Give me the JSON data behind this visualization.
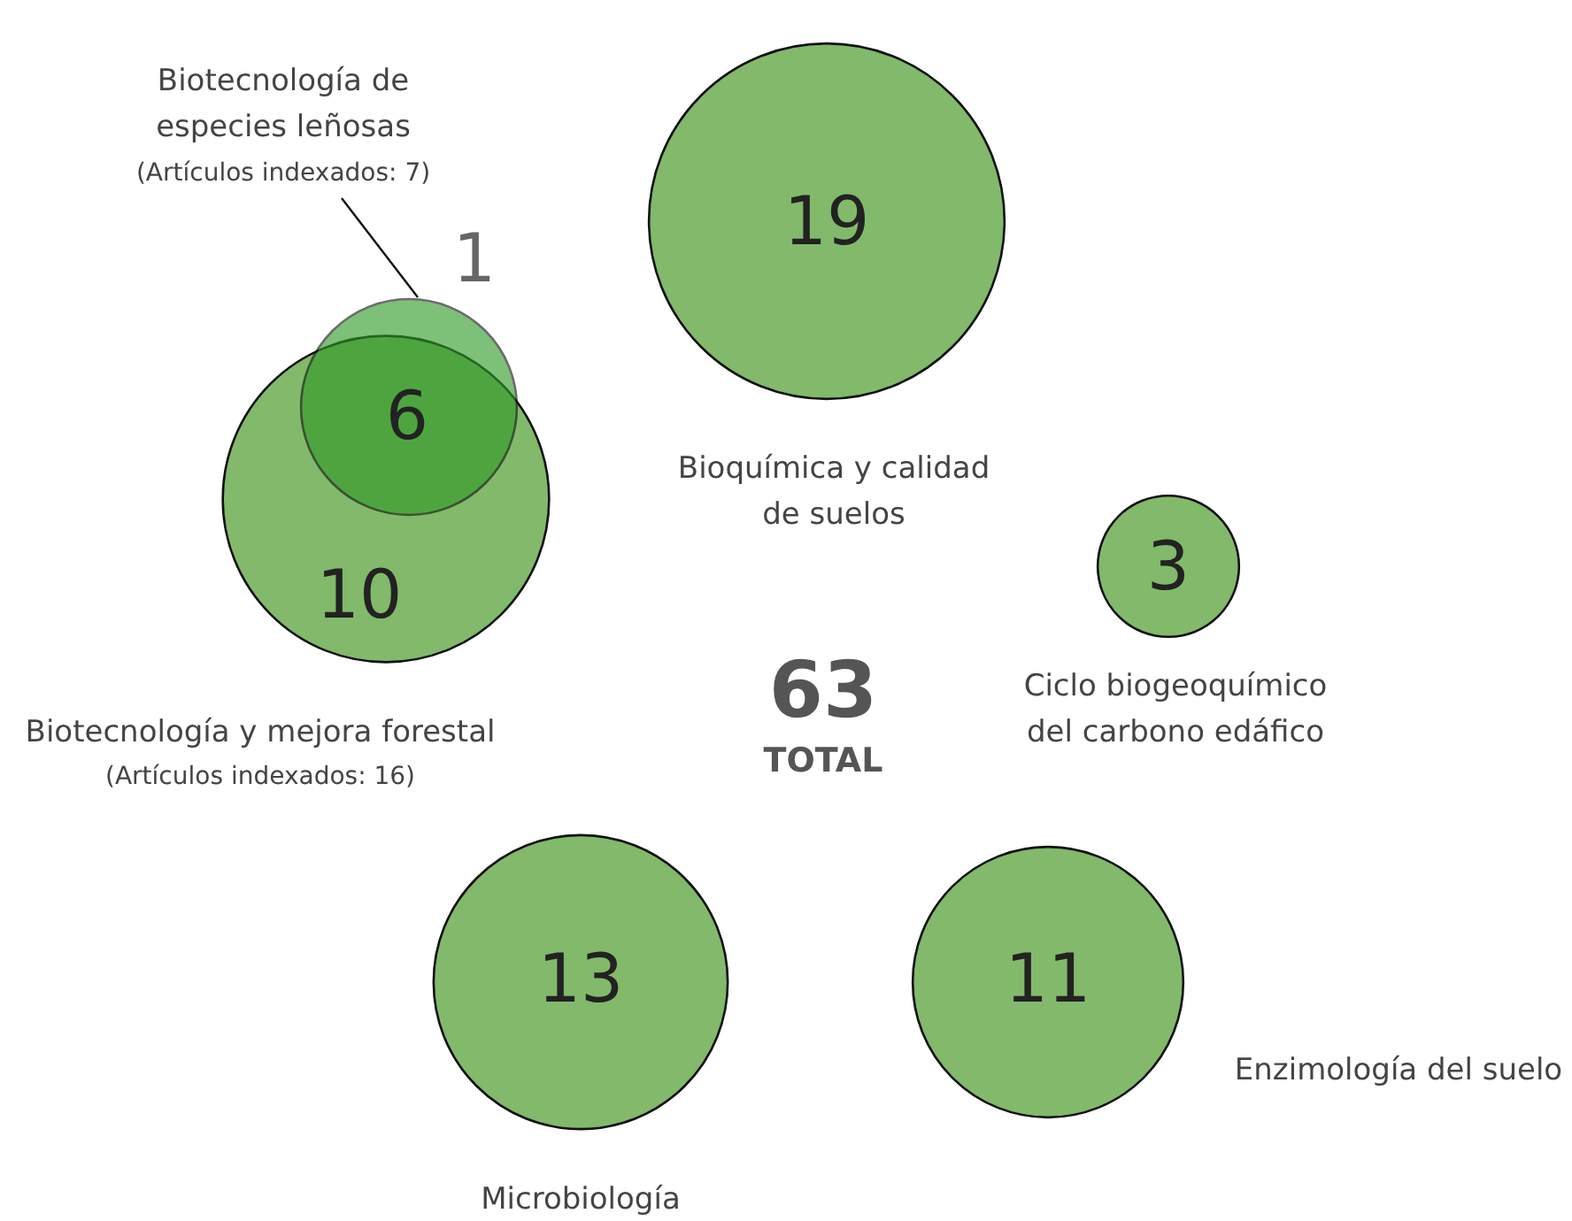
{
  "chart_data": {
    "type": "other",
    "categories": [
      "Biotecnología y mejora forestal",
      "Biotecnología de\nespecies leñosas",
      "Bioquímica y calidad\nde suelos",
      "Ciclo biogeoquímico\ndel carbono edáfico",
      "Microbiología",
      "Enzimología del suelo"
    ],
    "values": [
      16,
      7,
      19,
      3,
      13,
      11
    ],
    "value_labels": [
      "(Artículos indexados: 16)",
      "(Artículos indexados: 7)",
      "19",
      "3",
      "13",
      "11"
    ],
    "colors": [
      "#82b96b",
      "#2f9a26",
      "#82b96b",
      "#82b96b",
      "#82b96b",
      "#82b96b"
    ],
    "annotations": [
      "6",
      "63",
      "TOTAL",
      "10",
      "1"
    ]
  }
}
